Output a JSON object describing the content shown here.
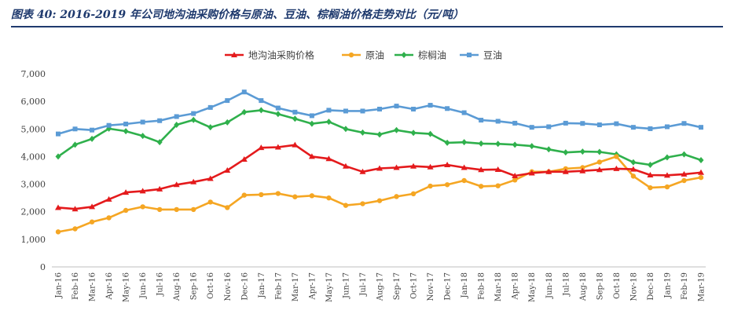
{
  "figure": {
    "title": "图表 40:  2016-2019 年公司地沟油采购价格与原油、豆油、棕榈油价格走势对比（元/吨）"
  },
  "chart_data": {
    "type": "line",
    "title": "",
    "xlabel": "",
    "ylabel": "",
    "ylim": [
      0,
      7000
    ],
    "yticks": [
      0,
      1000,
      2000,
      3000,
      4000,
      5000,
      6000,
      7000
    ],
    "ytick_labels": [
      "0",
      "1,000",
      "2,000",
      "3,000",
      "4,000",
      "5,000",
      "6,000",
      "7,000"
    ],
    "grid": false,
    "legend_position": "top",
    "categories": [
      "Jan-16",
      "Feb-16",
      "Mar-16",
      "Apr-16",
      "May-16",
      "Jun-16",
      "Jul-16",
      "Aug-16",
      "Sep-16",
      "Oct-16",
      "Nov-16",
      "Dec-16",
      "Jan-17",
      "Feb-17",
      "Mar-17",
      "Apr-17",
      "May-17",
      "Jun-17",
      "Jul-17",
      "Aug-17",
      "Sep-17",
      "Oct-17",
      "Nov-17",
      "Dec-17",
      "Jan-18",
      "Feb-18",
      "Mar-18",
      "Apr-18",
      "May-18",
      "Jun-18",
      "Jul-18",
      "Aug-18",
      "Sep-18",
      "Oct-18",
      "Nov-18",
      "Dec-18",
      "Jan-19",
      "Feb-19",
      "Mar-19"
    ],
    "tick_labels": [
      "Jan-16",
      "Feb-16",
      "Mar-16",
      "Apr-16",
      "May-16",
      "Jun-16",
      "Jul-16",
      "Aug-16",
      "Sep-16",
      "Oct-16",
      "Nov-16",
      "Dec-16",
      "Jan-17",
      "Feb-17",
      "Mar-17",
      "Apr-17",
      "May-17",
      "Jun-17",
      "Jul-17",
      "Aug-17",
      "Sep-17",
      "Oct-17",
      "Nov-17",
      "Dec-17",
      "Jan-18",
      "Feb-18",
      "Mar-18",
      "Apr-18",
      "May-18",
      "Jun-18",
      "Jul-18",
      "Aug-18",
      "Sep-18",
      "Oct-18",
      "Nov-18",
      "Dec-18",
      "Jan-19",
      "Feb-19",
      "Mar-19"
    ],
    "series": [
      {
        "name": "地沟油采购价格",
        "color": "#e41a1c",
        "marker": "triangle",
        "values": [
          2150,
          2100,
          2180,
          2450,
          2700,
          2750,
          2820,
          2980,
          3080,
          3200,
          3500,
          3900,
          4320,
          4340,
          4420,
          4000,
          3920,
          3650,
          3450,
          3570,
          3600,
          3650,
          3620,
          3700,
          3600,
          3520,
          3530,
          3300,
          3400,
          3450,
          3450,
          3480,
          3520,
          3560,
          3540,
          3330,
          3320,
          3360,
          3420
        ]
      },
      {
        "name": "原油",
        "color": "#f5a623",
        "marker": "circle",
        "values": [
          1270,
          1380,
          1630,
          1780,
          2050,
          2180,
          2080,
          2080,
          2080,
          2350,
          2150,
          2600,
          2620,
          2660,
          2540,
          2580,
          2500,
          2230,
          2290,
          2400,
          2550,
          2650,
          2930,
          2980,
          3130,
          2920,
          2940,
          3150,
          3450,
          3450,
          3560,
          3600,
          3800,
          4000,
          3290,
          2870,
          2900,
          3130,
          3240
        ]
      },
      {
        "name": "棕榈油",
        "color": "#2fb04c",
        "marker": "diamond",
        "values": [
          4000,
          4430,
          4640,
          5010,
          4920,
          4750,
          4520,
          5150,
          5330,
          5060,
          5240,
          5610,
          5680,
          5540,
          5370,
          5190,
          5260,
          5000,
          4870,
          4800,
          4960,
          4860,
          4820,
          4500,
          4520,
          4470,
          4460,
          4430,
          4380,
          4260,
          4150,
          4180,
          4170,
          4080,
          3790,
          3700,
          3970,
          4080,
          3870
        ]
      },
      {
        "name": "豆油",
        "color": "#5b9bd5",
        "marker": "square",
        "values": [
          4820,
          5000,
          4960,
          5130,
          5180,
          5250,
          5300,
          5450,
          5560,
          5780,
          6030,
          6340,
          6030,
          5760,
          5610,
          5480,
          5680,
          5650,
          5650,
          5720,
          5830,
          5720,
          5860,
          5740,
          5590,
          5320,
          5280,
          5210,
          5060,
          5080,
          5210,
          5200,
          5150,
          5190,
          5060,
          5010,
          5080,
          5200,
          5060
        ]
      }
    ]
  }
}
